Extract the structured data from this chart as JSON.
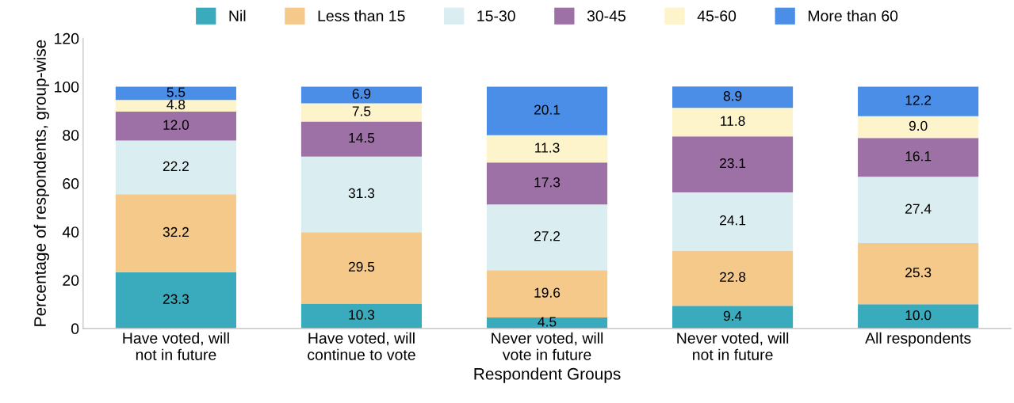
{
  "chart_data": {
    "type": "bar",
    "stacked": true,
    "xlabel": "Respondent Groups",
    "ylabel": "Percentage of respondents, group-wise",
    "categories": [
      "Have voted, will\nnot in future",
      "Have voted, will\ncontinue to vote",
      "Never voted, will\nvote in future",
      "Never voted, will\nnot in future",
      "All respondents"
    ],
    "series": [
      {
        "name": "Nil",
        "color": "#3aaabd",
        "values": [
          23.3,
          10.3,
          4.5,
          9.4,
          10.0
        ],
        "value_labels": [
          "23.3",
          "10.3",
          "4.5",
          "9.4",
          "10.0"
        ]
      },
      {
        "name": "Less than 15",
        "color": "#f5c98a",
        "values": [
          32.2,
          29.5,
          19.6,
          22.8,
          25.3
        ],
        "value_labels": [
          "32.2",
          "29.5",
          "19.6",
          "22.8",
          "25.3"
        ]
      },
      {
        "name": "15-30",
        "color": "#daedf1",
        "values": [
          22.2,
          31.3,
          27.2,
          24.1,
          27.4
        ],
        "value_labels": [
          "22.2",
          "31.3",
          "27.2",
          "24.1",
          "27.4"
        ]
      },
      {
        "name": "30-45",
        "color": "#9d70a6",
        "values": [
          12.0,
          14.5,
          17.3,
          23.1,
          16.1
        ],
        "value_labels": [
          "12.0",
          "14.5",
          "17.3",
          "23.1",
          "16.1"
        ]
      },
      {
        "name": "45-60",
        "color": "#fdf4cc",
        "values": [
          4.8,
          7.5,
          11.3,
          11.8,
          9.0
        ],
        "value_labels": [
          "4.8",
          "7.5",
          "11.3",
          "11.8",
          "9.0"
        ]
      },
      {
        "name": "More than 60",
        "color": "#4a8ee8",
        "values": [
          5.5,
          6.9,
          20.1,
          8.9,
          12.2
        ],
        "value_labels": [
          "5.5",
          "6.9",
          "20.1",
          "8.9",
          "12.2"
        ]
      }
    ],
    "ylim": [
      0,
      120
    ],
    "yticks": [
      0,
      20,
      40,
      60,
      80,
      100,
      120
    ],
    "legend": "top",
    "grid": false
  }
}
